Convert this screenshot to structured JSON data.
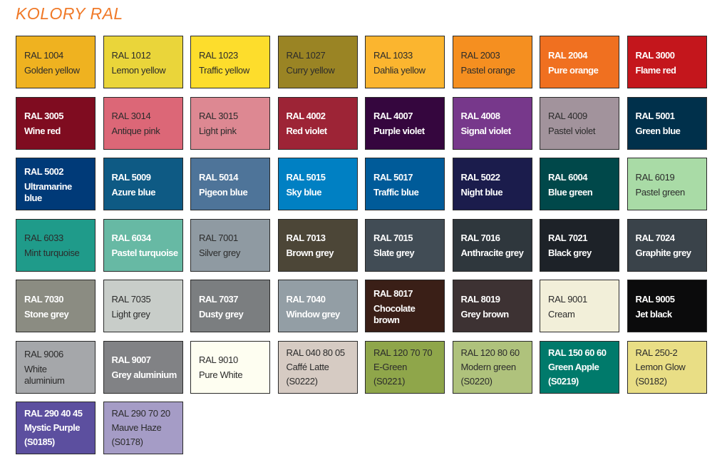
{
  "title": "KOLORY RAL",
  "swatches": [
    {
      "code": "RAL 1004",
      "name": "Golden yellow",
      "color": "#efb220"
    },
    {
      "code": "RAL 1012",
      "name": "Lemon yellow",
      "color": "#ead53a"
    },
    {
      "code": "RAL 1023",
      "name": "Traffic yellow",
      "color": "#fddd2c"
    },
    {
      "code": "RAL 1027",
      "name": "Curry yellow",
      "color": "#9a8424"
    },
    {
      "code": "RAL 1033",
      "name": "Dahlia yellow",
      "color": "#fbb52f"
    },
    {
      "code": "RAL 2003",
      "name": "Pastel orange",
      "color": "#f58f20"
    },
    {
      "code": "RAL 2004",
      "name": "Pure orange",
      "color": "#f07020",
      "light": true
    },
    {
      "code": "RAL 3000",
      "name": "Flame red",
      "color": "#c4161c",
      "light": true
    },
    {
      "code": "RAL 3005",
      "name": "Wine red",
      "color": "#7f0c20",
      "light": true
    },
    {
      "code": "RAL 3014",
      "name": "Antique pink",
      "color": "#dc6777"
    },
    {
      "code": "RAL 3015",
      "name": "Light pink",
      "color": "#dd8892"
    },
    {
      "code": "RAL 4002",
      "name": "Red violet",
      "color": "#9d2436",
      "light": true
    },
    {
      "code": "RAL 4007",
      "name": "Purple violet",
      "color": "#35063e",
      "light": true
    },
    {
      "code": "RAL 4008",
      "name": "Signal violet",
      "color": "#77388b",
      "light": true
    },
    {
      "code": "RAL 4009",
      "name": "Pastel violet",
      "color": "#a2939c"
    },
    {
      "code": "RAL 5001",
      "name": "Green blue",
      "color": "#00304b",
      "light": true
    },
    {
      "code": "RAL 5002",
      "name": "Ultramarine\nblue",
      "color": "#003a78",
      "light": true
    },
    {
      "code": "RAL 5009",
      "name": "Azure blue",
      "color": "#0e5a84",
      "light": true
    },
    {
      "code": "RAL 5014",
      "name": "Pigeon blue",
      "color": "#4e7499",
      "light": true
    },
    {
      "code": "RAL 5015",
      "name": "Sky blue",
      "color": "#0080c3",
      "light": true
    },
    {
      "code": "RAL 5017",
      "name": "Traffic blue",
      "color": "#005b99",
      "light": true
    },
    {
      "code": "RAL 5022",
      "name": "Night blue",
      "color": "#1b1c4c",
      "light": true
    },
    {
      "code": "RAL 6004",
      "name": "Blue green",
      "color": "#00484a",
      "light": true
    },
    {
      "code": "RAL 6019",
      "name": "Pastel green",
      "color": "#a9dba6"
    },
    {
      "code": "RAL 6033",
      "name": "Mint turquoise",
      "color": "#1f9b8a"
    },
    {
      "code": "RAL 6034",
      "name": "Pastel turquoise",
      "color": "#67b9a4",
      "light": true
    },
    {
      "code": "RAL 7001",
      "name": "Silver grey",
      "color": "#8f9aa2"
    },
    {
      "code": "RAL 7013",
      "name": "Brown grey",
      "color": "#4c4637",
      "light": true
    },
    {
      "code": "RAL 7015",
      "name": "Slate grey",
      "color": "#414c55",
      "light": true
    },
    {
      "code": "RAL 7016",
      "name": "Anthracite grey",
      "color": "#2f373d",
      "light": true
    },
    {
      "code": "RAL 7021",
      "name": "Black grey",
      "color": "#1d2228",
      "light": true
    },
    {
      "code": "RAL 7024",
      "name": "Graphite grey",
      "color": "#3a434a",
      "light": true
    },
    {
      "code": "RAL 7030",
      "name": "Stone grey",
      "color": "#8b8c82",
      "light": true
    },
    {
      "code": "RAL 7035",
      "name": "Light grey",
      "color": "#c8cdc9"
    },
    {
      "code": "RAL 7037",
      "name": "Dusty grey",
      "color": "#7b7e80",
      "light": true
    },
    {
      "code": "RAL 7040",
      "name": "Window grey",
      "color": "#939ea5",
      "light": true
    },
    {
      "code": "RAL 8017",
      "name": "Chocolate\nbrown",
      "color": "#3a1f17",
      "light": true
    },
    {
      "code": "RAL 8019",
      "name": "Grey brown",
      "color": "#3d3233",
      "light": true
    },
    {
      "code": "RAL 9001",
      "name": "Cream",
      "color": "#f2efd9"
    },
    {
      "code": "RAL 9005",
      "name": "Jet black",
      "color": "#0b0b0c",
      "light": true
    },
    {
      "code": "RAL 9006",
      "name": "White\naluminium",
      "color": "#a5a7aa"
    },
    {
      "code": "RAL 9007",
      "name": "Grey aluminium",
      "color": "#818285",
      "light": true
    },
    {
      "code": "RAL 9010",
      "name": "Pure White",
      "color": "#fefef1"
    },
    {
      "code": "RAL 040 80 05",
      "name": "Caffé Latte",
      "sub": "(S0222)",
      "color": "#d6cbc3"
    },
    {
      "code": "RAL 120 70 70",
      "name": "E-Green",
      "sub": "(S0221)",
      "color": "#8fa64a"
    },
    {
      "code": "RAL 120 80 60",
      "name": "Modern green",
      "sub": "(S0220)",
      "color": "#afc27c"
    },
    {
      "code": "RAL 150 60 60",
      "name": "Green Apple",
      "sub": "(S0219)",
      "color": "#007a6b",
      "light": true
    },
    {
      "code": "RAL 250-2",
      "name": "Lemon Glow",
      "sub": "(S0182)",
      "color": "#e9de85"
    },
    {
      "code": "RAL 290 40 45",
      "name": "Mystic Purple",
      "sub": "(S0185)",
      "color": "#5c4f9f",
      "light": true
    },
    {
      "code": "RAL 290 70 20",
      "name": "Mauve Haze",
      "sub": "(S0178)",
      "color": "#a59cc6"
    }
  ]
}
